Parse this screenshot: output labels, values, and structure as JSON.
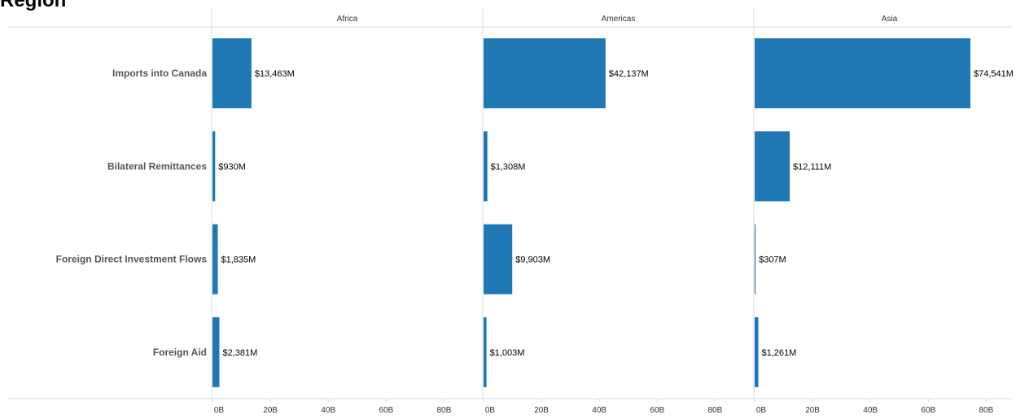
{
  "page": {
    "title": "Region"
  },
  "chart_data": {
    "type": "bar",
    "orientation": "horizontal",
    "facets": [
      "Africa",
      "Americas",
      "Asia"
    ],
    "categories": [
      "Imports into Canada",
      "Bilateral Remittances",
      "Foreign Direct Investment Flows",
      "Foreign Aid"
    ],
    "series": [
      {
        "facet": "Africa",
        "values": [
          13463,
          930,
          1835,
          2381
        ],
        "labels": [
          "$13,463M",
          "$930M",
          "$1,835M",
          "$2,381M"
        ]
      },
      {
        "facet": "Americas",
        "values": [
          42137,
          1308,
          9903,
          1003
        ],
        "labels": [
          "$42,137M",
          "$1,308M",
          "$9,903M",
          "$1,003M"
        ]
      },
      {
        "facet": "Asia",
        "values": [
          74541,
          12111,
          307,
          1261
        ],
        "labels": [
          "$74,541M",
          "$12,111M",
          "$307M",
          "$1,261M"
        ]
      }
    ],
    "value_unit": "M",
    "xlim": [
      0,
      92000
    ],
    "xticks": [
      {
        "value": 0,
        "label": "0B"
      },
      {
        "value": 20000,
        "label": "20B"
      },
      {
        "value": 40000,
        "label": "40B"
      },
      {
        "value": 60000,
        "label": "60B"
      },
      {
        "value": 80000,
        "label": "80B"
      }
    ],
    "colors": {
      "bar": "#1f77b4",
      "axis": "#d9d9d9",
      "text": "#333333",
      "label": "#555555"
    },
    "grid": false
  }
}
